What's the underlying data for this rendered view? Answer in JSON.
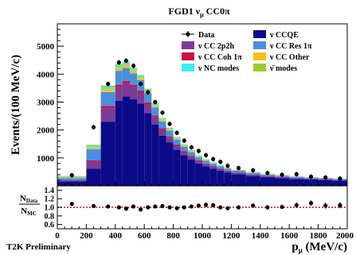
{
  "chart_data": {
    "type": "bar",
    "title": "FGD1 ν",
    "title_sub": "μ",
    "title_tail": " CC0π",
    "ylabel": "Events/(100 MeV/c)",
    "xlabel": "p",
    "xlabel_sub": "μ",
    "xlabel_tail": " (MeV/c)",
    "ratio_ylabel_num": "N",
    "ratio_ylabel_num_sub": "Data",
    "ratio_ylabel_den": "N",
    "ratio_ylabel_den_sub": "MC",
    "footer": "T2K Preliminary",
    "xlim": [
      0,
      2000
    ],
    "ylim": [
      0,
      5800
    ],
    "ratio_ylim": [
      0.5,
      1.5
    ],
    "x_ticks": [
      "0",
      "200",
      "400",
      "600",
      "800",
      "1000",
      "1200",
      "1400",
      "1600",
      "1800",
      "2000"
    ],
    "y_ticks": [
      "1000",
      "2000",
      "3000",
      "4000",
      "5000"
    ],
    "ratio_ticks": [
      "0.6",
      "0.8",
      "1.0",
      "1.2",
      "1.4"
    ],
    "legend_position": "top-right",
    "colors": {
      "ccqe": "#0b0b8a",
      "cc2p2h": "#7b3a96",
      "ccres": "#4a90e0",
      "cccoh": "#d01040",
      "ccother": "#f2c21a",
      "nc": "#40ecf0",
      "antinu": "#9acd32",
      "data": "#000000",
      "ratio_line": "#e00000"
    },
    "legend": [
      {
        "key": "data",
        "label": "Data",
        "marker": "point"
      },
      {
        "key": "ccqe",
        "label": "ν CCQE",
        "marker": "box"
      },
      {
        "key": "cc2p2h",
        "label": "ν CC 2p2h",
        "marker": "box"
      },
      {
        "key": "ccres",
        "label": "ν CC Res 1π",
        "marker": "box"
      },
      {
        "key": "cccoh",
        "label": "ν CC Coh 1π",
        "marker": "box"
      },
      {
        "key": "ccother",
        "label": "ν CC Other",
        "marker": "box"
      },
      {
        "key": "nc",
        "label": "ν NC modes",
        "marker": "box"
      },
      {
        "key": "antinu",
        "label": "ν̄ modes",
        "marker": "box"
      }
    ],
    "bins": [
      [
        0,
        200
      ],
      [
        200,
        300
      ],
      [
        300,
        400
      ],
      [
        400,
        450
      ],
      [
        450,
        500
      ],
      [
        500,
        550
      ],
      [
        550,
        600
      ],
      [
        600,
        650
      ],
      [
        650,
        700
      ],
      [
        700,
        750
      ],
      [
        750,
        800
      ],
      [
        800,
        850
      ],
      [
        850,
        900
      ],
      [
        900,
        950
      ],
      [
        950,
        1000
      ],
      [
        1000,
        1050
      ],
      [
        1050,
        1100
      ],
      [
        1100,
        1150
      ],
      [
        1150,
        1200
      ],
      [
        1200,
        1300
      ],
      [
        1300,
        1400
      ],
      [
        1400,
        1500
      ],
      [
        1500,
        1600
      ],
      [
        1600,
        1700
      ],
      [
        1700,
        1800
      ],
      [
        1800,
        1900
      ],
      [
        1900,
        2000
      ]
    ],
    "series": [
      {
        "key": "ccqe",
        "name": "ν CCQE",
        "values": [
          160,
          620,
          2300,
          3050,
          3200,
          3100,
          2950,
          2600,
          2200,
          1800,
          1550,
          1300,
          1100,
          950,
          800,
          700,
          620,
          550,
          480,
          420,
          360,
          310,
          280,
          250,
          230,
          210,
          190
        ]
      },
      {
        "key": "cc2p2h",
        "name": "ν CC 2p2h",
        "values": [
          50,
          250,
          480,
          480,
          470,
          430,
          390,
          330,
          270,
          220,
          180,
          150,
          130,
          110,
          95,
          85,
          75,
          65,
          58,
          52,
          46,
          40,
          36,
          32,
          29,
          26,
          23
        ]
      },
      {
        "key": "cccoh",
        "name": "ν CC Coh 1π",
        "values": [
          10,
          40,
          80,
          90,
          90,
          80,
          70,
          60,
          50,
          40,
          35,
          30,
          25,
          20,
          18,
          16,
          14,
          12,
          10,
          9,
          8,
          7,
          6,
          6,
          5,
          5,
          4
        ]
      },
      {
        "key": "ccres",
        "name": "ν CC Res 1π",
        "values": [
          60,
          400,
          500,
          500,
          460,
          420,
          380,
          330,
          290,
          250,
          210,
          180,
          150,
          130,
          110,
          95,
          85,
          75,
          68,
          60,
          52,
          46,
          40,
          36,
          32,
          29,
          26
        ]
      },
      {
        "key": "ccother",
        "name": "ν CC Other",
        "values": [
          20,
          60,
          100,
          110,
          110,
          100,
          90,
          80,
          70,
          60,
          50,
          44,
          38,
          33,
          29,
          26,
          23,
          20,
          18,
          16,
          14,
          12,
          11,
          10,
          9,
          8,
          7
        ]
      },
      {
        "key": "nc",
        "name": "ν NC modes",
        "values": [
          30,
          60,
          80,
          80,
          70,
          60,
          55,
          50,
          45,
          40,
          35,
          30,
          27,
          24,
          21,
          19,
          17,
          15,
          13,
          12,
          11,
          10,
          9,
          8,
          7,
          6,
          6
        ]
      },
      {
        "key": "antinu",
        "name": "ν̄ modes",
        "values": [
          20,
          40,
          50,
          50,
          45,
          40,
          35,
          30,
          27,
          24,
          21,
          19,
          17,
          15,
          13,
          12,
          11,
          10,
          9,
          8,
          7,
          6,
          6,
          5,
          5,
          4,
          4
        ]
      }
    ],
    "data_points": {
      "x": [
        100,
        250,
        350,
        425,
        475,
        525,
        575,
        625,
        675,
        725,
        775,
        825,
        875,
        925,
        975,
        1025,
        1075,
        1125,
        1175,
        1250,
        1350,
        1450,
        1550,
        1650,
        1750,
        1850,
        1950
      ],
      "y": [
        380,
        2100,
        3650,
        4420,
        4480,
        4300,
        3650,
        3350,
        3000,
        2620,
        2220,
        1900,
        1620,
        1380,
        1250,
        1100,
        960,
        860,
        720,
        640,
        560,
        460,
        400,
        420,
        330,
        300,
        260
      ],
      "err": [
        20,
        45,
        60,
        66,
        67,
        66,
        60,
        58,
        55,
        51,
        47,
        44,
        40,
        37,
        35,
        33,
        31,
        29,
        27,
        25,
        24,
        21,
        20,
        20,
        18,
        17,
        16
      ]
    },
    "ratio_points": {
      "x": [
        100,
        250,
        350,
        425,
        475,
        525,
        575,
        625,
        675,
        725,
        775,
        825,
        875,
        925,
        975,
        1025,
        1075,
        1125,
        1175,
        1250,
        1350,
        1450,
        1550,
        1650,
        1750,
        1850,
        1950
      ],
      "y": [
        1.08,
        1.03,
        1.02,
        1.0,
        0.97,
        1.02,
        0.95,
        1.0,
        1.02,
        1.03,
        1.0,
        0.98,
        1.0,
        1.02,
        1.04,
        1.06,
        1.05,
        1.0,
        0.98,
        1.0,
        1.04,
        1.0,
        1.01,
        1.05,
        1.1,
        1.04,
        1.05
      ],
      "err": [
        0.03,
        0.02,
        0.02,
        0.02,
        0.02,
        0.02,
        0.02,
        0.02,
        0.02,
        0.02,
        0.03,
        0.03,
        0.03,
        0.03,
        0.03,
        0.03,
        0.04,
        0.04,
        0.04,
        0.04,
        0.05,
        0.05,
        0.05,
        0.06,
        0.06,
        0.07,
        0.07
      ]
    }
  }
}
